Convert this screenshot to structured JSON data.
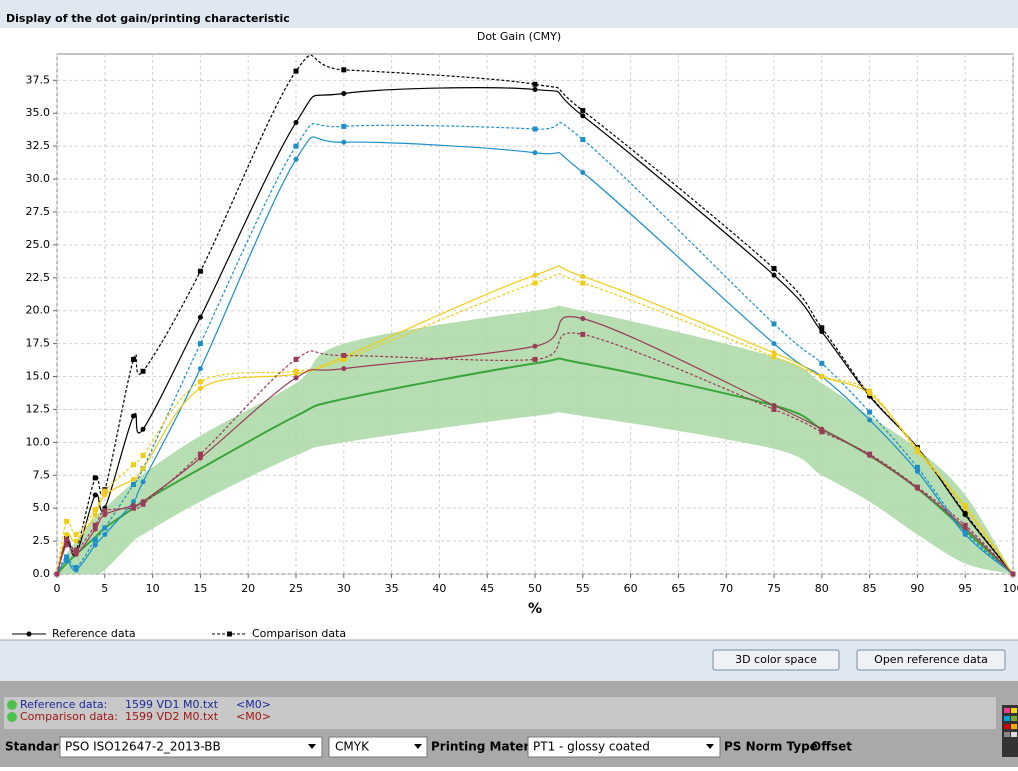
{
  "header": {
    "title": "Display of the dot gain/printing characteristic"
  },
  "chart_data": {
    "type": "line",
    "title": "Dot Gain (CMY)",
    "xlabel": "%",
    "x": [
      0,
      1,
      2,
      4,
      5,
      8,
      9,
      15,
      25,
      30,
      50,
      55,
      75,
      80,
      85,
      90,
      95,
      100
    ],
    "xlim": [
      0,
      100
    ],
    "xticks": [
      0,
      5,
      10,
      15,
      20,
      25,
      30,
      35,
      40,
      45,
      50,
      55,
      60,
      65,
      70,
      75,
      80,
      85,
      90,
      95,
      100
    ],
    "ylim": [
      0,
      39.5
    ],
    "yticks": [
      {
        "value": 0,
        "label": "0.0"
      },
      2.5,
      {
        "value": 5,
        "label": "5.0"
      },
      7.5,
      {
        "value": 10,
        "label": "10.0"
      },
      12.5,
      {
        "value": 15,
        "label": "15.0"
      },
      17.5,
      {
        "value": 20,
        "label": "20.0"
      },
      22.5,
      {
        "value": 25,
        "label": "25.0"
      },
      27.5,
      {
        "value": 30,
        "label": "30.0"
      },
      32.5,
      {
        "value": 35,
        "label": "35.0"
      },
      37.5
    ],
    "grid": true,
    "band": {
      "color": "#a9d8a4",
      "upper": [
        0,
        1.5,
        2.5,
        4.3,
        5,
        7,
        7.6,
        10.5,
        14.5,
        17.5,
        20,
        20,
        16.5,
        14.5,
        12,
        9.5,
        6,
        0
      ],
      "lower": [
        0,
        0,
        0,
        0,
        0.3,
        2.5,
        3,
        5.5,
        9,
        10,
        12,
        12,
        9.5,
        7.5,
        5.5,
        3,
        0.8,
        0
      ]
    },
    "series": [
      {
        "color": "#3aa63a",
        "style": "center",
        "values": [
          0,
          0.8,
          1.5,
          2.8,
          3.5,
          5,
          5.5,
          8,
          12,
          13.3,
          16,
          16,
          12.8,
          11,
          9,
          6.5,
          3.3,
          0
        ]
      },
      {
        "color": "#000000",
        "style": "reference",
        "values": [
          0,
          2.5,
          1.5,
          6,
          5,
          12,
          11,
          19.5,
          34.3,
          36.5,
          36.8,
          34.8,
          22.7,
          18.4,
          13.5,
          9.6,
          4.5,
          0
        ]
      },
      {
        "color": "#000000",
        "style": "comparison",
        "values": [
          0,
          2.7,
          1.8,
          7.3,
          6.4,
          16.3,
          15.4,
          23,
          38.2,
          38.3,
          37.2,
          35.2,
          23.2,
          18.7,
          13.6,
          9.6,
          4.6,
          0
        ]
      },
      {
        "color": "#1a8fcc",
        "style": "reference",
        "values": [
          0,
          1,
          0.3,
          2.2,
          3,
          5.5,
          7,
          15.6,
          31.5,
          32.8,
          32,
          30.5,
          17.5,
          15,
          11.7,
          7.8,
          3,
          0
        ]
      },
      {
        "color": "#1a8fcc",
        "style": "comparison",
        "values": [
          0,
          1.3,
          0.5,
          2.6,
          3.5,
          6.8,
          8,
          17.5,
          32.5,
          34,
          33.8,
          33,
          19,
          16,
          12.3,
          8.1,
          3.2,
          0
        ]
      },
      {
        "color": "#f2cc10",
        "style": "reference",
        "values": [
          0,
          3,
          2.5,
          4.5,
          6,
          7.2,
          8,
          14.1,
          15.2,
          16.5,
          22.7,
          22.6,
          16.8,
          15,
          13.7,
          9.5,
          5,
          0
        ]
      },
      {
        "color": "#f2cc10",
        "style": "comparison",
        "values": [
          0,
          4,
          3,
          4.9,
          6.3,
          8.3,
          9,
          14.6,
          15.4,
          16.3,
          22.1,
          22.1,
          16.5,
          15,
          13.9,
          9.3,
          5.2,
          0
        ]
      },
      {
        "color": "#9c3a5a",
        "style": "reference",
        "values": [
          0,
          2.2,
          1.5,
          3.4,
          4.5,
          5.2,
          5.5,
          8.8,
          14.9,
          15.6,
          17.3,
          19.4,
          12.8,
          11,
          9,
          6.5,
          3.5,
          0
        ]
      },
      {
        "color": "#9c3a5a",
        "style": "comparison",
        "values": [
          0,
          2.6,
          1.8,
          3.7,
          4.8,
          5,
          5.3,
          9.1,
          16.3,
          16.6,
          16.3,
          18.2,
          12.5,
          10.8,
          9.1,
          6.6,
          3.7,
          0
        ]
      }
    ],
    "legend": [
      {
        "label": "Reference data",
        "style": "reference"
      },
      {
        "label": "Comparison data",
        "style": "comparison"
      }
    ]
  },
  "buttons": [
    "3D color space",
    "Open reference data"
  ],
  "status": {
    "reference": {
      "label": "Reference data:",
      "file": "1599  VD1  M0.txt",
      "tag": "<M0>"
    },
    "comparison": {
      "label": "Comparison data:",
      "file": "1599  VD2  M0.txt",
      "tag": "<M0>"
    }
  },
  "toolbar": {
    "standard_label": "Standard",
    "standard": "PSO ISO12647-2_2013-BB",
    "colorspace": "CMYK",
    "material_label": "Printing Material",
    "material": "PT1 - glossy coated",
    "norm_label": "PS Norm Type",
    "norm": "Offset"
  }
}
